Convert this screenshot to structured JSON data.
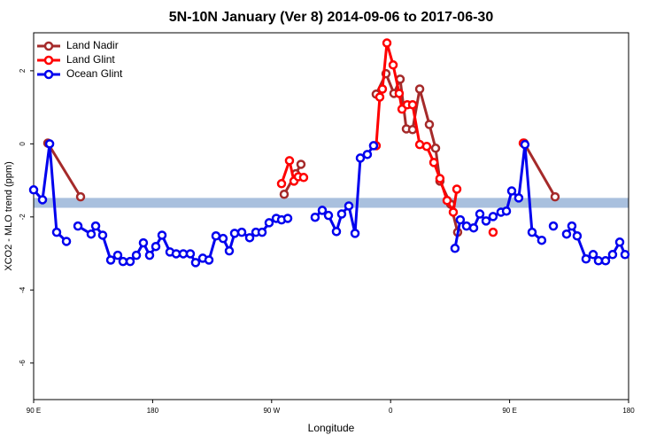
{
  "chart_data": {
    "type": "line",
    "title": "5N-10N January (Ver 8)   2014-09-06 to 2017-06-30",
    "x_label": "Longitude",
    "y_label": "XCO2 - MLO trend (ppm)",
    "xlim": [
      90,
      540
    ],
    "ylim": [
      -7,
      3.04
    ],
    "xticks": [
      {
        "value": 90,
        "label": "90 E"
      },
      180,
      {
        "value": 270,
        "label": "90 W"
      },
      {
        "value": 360,
        "label": "0"
      },
      {
        "value": 450,
        "label": "90 E"
      },
      {
        "value": 540,
        "label": "180"
      }
    ],
    "yticks": [
      -6,
      -4,
      -2,
      0,
      2
    ],
    "legend": "top-left",
    "band_range": [
      -1.75,
      -1.48
    ],
    "band_color": "#a9c0de",
    "series": [
      {
        "name": "Land Nadir",
        "color": "#a52a2a",
        "x": [
          100.7,
          125.5,
          null,
          279.5,
          288.2,
          292.2,
          null,
          349.1,
          356.5,
          362.5,
          367.2,
          371.9,
          376.6,
          382.0,
          389.3,
          394.0,
          397.3,
          405.4,
          410.7,
          null,
          461.0,
          484.4
        ],
        "values": [
          0.02,
          -1.45,
          null,
          -1.38,
          -0.82,
          -0.56,
          null,
          1.36,
          1.92,
          1.38,
          1.77,
          0.41,
          0.39,
          1.5,
          0.53,
          -0.12,
          -1.02,
          -1.65,
          -2.42,
          null,
          0.02,
          -1.45
        ]
      },
      {
        "name": "Land Glint",
        "color": "#ff0000",
        "x": [
          277.5,
          283.5,
          286.9,
          290.2,
          294.2,
          null,
          349.1,
          351.8,
          353.8,
          357.2,
          361.9,
          366.5,
          368.6,
          372.6,
          376.6,
          382.0,
          387.3,
          392.7,
          397.3,
          402.7,
          407.4,
          410.1,
          null,
          437.5,
          null,
          460.3
        ],
        "values": [
          -1.09,
          -0.46,
          -1.02,
          -0.9,
          -0.92,
          null,
          -0.05,
          1.28,
          1.5,
          2.76,
          2.16,
          1.38,
          0.95,
          1.07,
          1.07,
          -0.02,
          -0.07,
          -0.51,
          -0.95,
          -1.55,
          -1.87,
          -1.24,
          null,
          -2.42,
          null,
          0.02
        ]
      },
      {
        "name": "Ocean Glint",
        "color": "#0000ee",
        "x": [
          90.0,
          96.7,
          102.1,
          107.4,
          114.8,
          null,
          123.5,
          133.5,
          136.9,
          142.2,
          148.3,
          153.6,
          157.6,
          163.0,
          167.7,
          173.0,
          177.7,
          182.4,
          187.1,
          193.1,
          197.8,
          203.2,
          208.5,
          212.5,
          217.9,
          222.6,
          227.9,
          233.3,
          238.0,
          242.0,
          247.4,
          253.4,
          258.1,
          262.8,
          268.1,
          273.5,
          277.5,
          282.2,
          null,
          302.9,
          308.3,
          313.0,
          319.0,
          323.0,
          328.4,
          333.1,
          337.1,
          342.4,
          347.1,
          null,
          408.7,
          412.7,
          417.4,
          422.8,
          427.5,
          432.2,
          437.5,
          443.5,
          447.6,
          451.6,
          456.9,
          461.6,
          467.0,
          474.3,
          null,
          483.1,
          null,
          493.1,
          497.1,
          501.1,
          507.8,
          513.2,
          517.2,
          522.6,
          527.9,
          533.3,
          537.3
        ],
        "values": [
          -1.26,
          -1.53,
          0.0,
          -2.42,
          -2.67,
          null,
          -2.25,
          -2.47,
          -2.25,
          -2.5,
          -3.18,
          -3.05,
          -3.22,
          -3.22,
          -3.05,
          -2.71,
          -3.05,
          -2.81,
          -2.5,
          -2.96,
          -3.01,
          -3.01,
          -3.01,
          -3.25,
          -3.13,
          -3.18,
          -2.52,
          -2.59,
          -2.93,
          -2.45,
          -2.42,
          -2.57,
          -2.42,
          -2.42,
          -2.16,
          -2.04,
          -2.08,
          -2.04,
          null,
          -2.01,
          -1.82,
          -1.96,
          -2.4,
          -1.92,
          -1.7,
          -2.45,
          -0.39,
          -0.29,
          -0.05,
          null,
          -2.86,
          -2.08,
          -2.25,
          -2.3,
          -1.92,
          -2.11,
          -1.99,
          -1.87,
          -1.84,
          -1.29,
          -1.48,
          -0.02,
          -2.42,
          -2.64,
          null,
          -2.25,
          null,
          -2.47,
          -2.25,
          -2.52,
          -3.15,
          -3.03,
          -3.2,
          -3.2,
          -3.03,
          -2.69,
          -3.03
        ]
      }
    ]
  }
}
